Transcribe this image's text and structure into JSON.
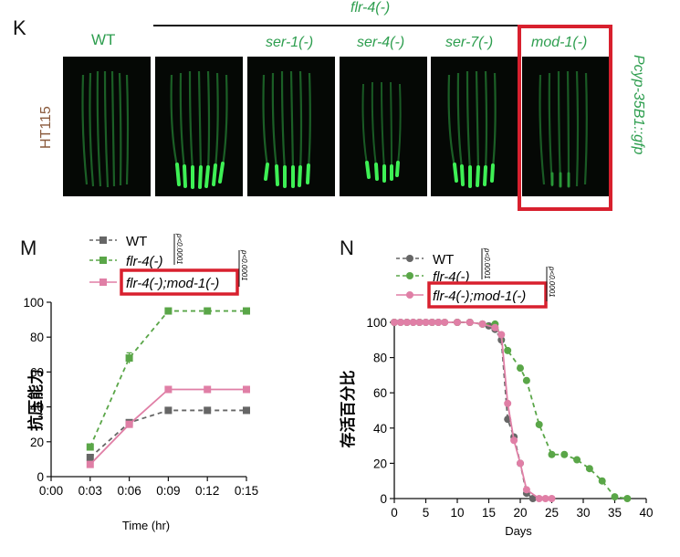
{
  "panel_k": {
    "letter": "K",
    "group_label": "flr-4(-)",
    "wt_label": "WT",
    "strains": [
      "ser-1(-)",
      "ser-4(-)",
      "ser-7(-)",
      "mod-1(-)"
    ],
    "row_label": "HT115",
    "reporter_label": "Pcyp-35B1::gfp",
    "highlight_color": "#d8202e",
    "gfp_color": "#33d44a"
  },
  "panel_m": {
    "letter": "M",
    "legend": [
      "WT",
      "flr-4(-)",
      "flr-4(-);mod-1(-)"
    ],
    "pvalue_1": "p<0.0001",
    "pvalue_2": "p<0.0001"
  },
  "panel_n": {
    "letter": "N",
    "legend": [
      "WT",
      "flr-4(-)",
      "flr-4(-);mod-1(-)"
    ],
    "pvalue_1": "p<0.0001",
    "pvalue_2": "p<0.0001"
  },
  "chart_data": [
    {
      "type": "line",
      "title": "",
      "xlabel": "Time (hr)",
      "ylabel": "抗压能力",
      "x": [
        "0:00",
        "0:03",
        "0:06",
        "0:09",
        "0:12",
        "0:15"
      ],
      "ylim": [
        0,
        100
      ],
      "yticks": [
        0,
        20,
        40,
        60,
        80,
        100
      ],
      "series": [
        {
          "name": "WT",
          "color": "#666666",
          "marker": "square",
          "dashed": true,
          "x": [
            3,
            6,
            9,
            12,
            15
          ],
          "values": [
            11,
            31,
            38,
            38,
            38
          ]
        },
        {
          "name": "flr-4(-)",
          "color": "#5aa648",
          "marker": "square",
          "dashed": true,
          "x": [
            3,
            6,
            9,
            12,
            15
          ],
          "values": [
            17,
            68,
            95,
            95,
            95
          ]
        },
        {
          "name": "flr-4(-);mod-1(-)",
          "color": "#e07fa6",
          "marker": "square",
          "dashed": false,
          "x": [
            3,
            6,
            9,
            12,
            15
          ],
          "values": [
            7,
            30,
            50,
            50,
            50
          ]
        }
      ]
    },
    {
      "type": "line",
      "title": "",
      "xlabel": "Days",
      "ylabel": "存活百分比",
      "xlim": [
        0,
        40
      ],
      "xticks": [
        0,
        5,
        10,
        15,
        20,
        25,
        30,
        35,
        40
      ],
      "ylim": [
        0,
        100
      ],
      "yticks": [
        0,
        20,
        40,
        60,
        80,
        100
      ],
      "series": [
        {
          "name": "WT",
          "color": "#666666",
          "marker": "circle",
          "dashed": true,
          "x": [
            0,
            1,
            2,
            3,
            4,
            5,
            6,
            7,
            10,
            12,
            14,
            15,
            16,
            17,
            18,
            19,
            20,
            21,
            22
          ],
          "values": [
            100,
            100,
            100,
            100,
            100,
            100,
            100,
            100,
            100,
            100,
            99,
            98,
            96,
            90,
            45,
            35,
            20,
            3,
            0
          ]
        },
        {
          "name": "flr-4(-)",
          "color": "#5aa648",
          "marker": "circle",
          "dashed": true,
          "x": [
            0,
            2,
            4,
            6,
            8,
            10,
            12,
            14,
            16,
            18,
            20,
            21,
            23,
            25,
            27,
            29,
            31,
            33,
            35,
            37
          ],
          "values": [
            100,
            100,
            100,
            100,
            100,
            100,
            100,
            99,
            99,
            84,
            74,
            67,
            42,
            25,
            25,
            22,
            17,
            10,
            1,
            0
          ]
        },
        {
          "name": "flr-4(-);mod-1(-)",
          "color": "#e07fa6",
          "marker": "circle",
          "dashed": false,
          "x": [
            0,
            1,
            2,
            3,
            4,
            5,
            6,
            7,
            8,
            10,
            12,
            14,
            16,
            17,
            18,
            19,
            20,
            21,
            23,
            24,
            25
          ],
          "values": [
            100,
            100,
            100,
            100,
            100,
            100,
            100,
            100,
            100,
            100,
            100,
            99,
            97,
            93,
            54,
            33,
            20,
            5,
            0,
            0,
            0
          ]
        }
      ]
    }
  ]
}
